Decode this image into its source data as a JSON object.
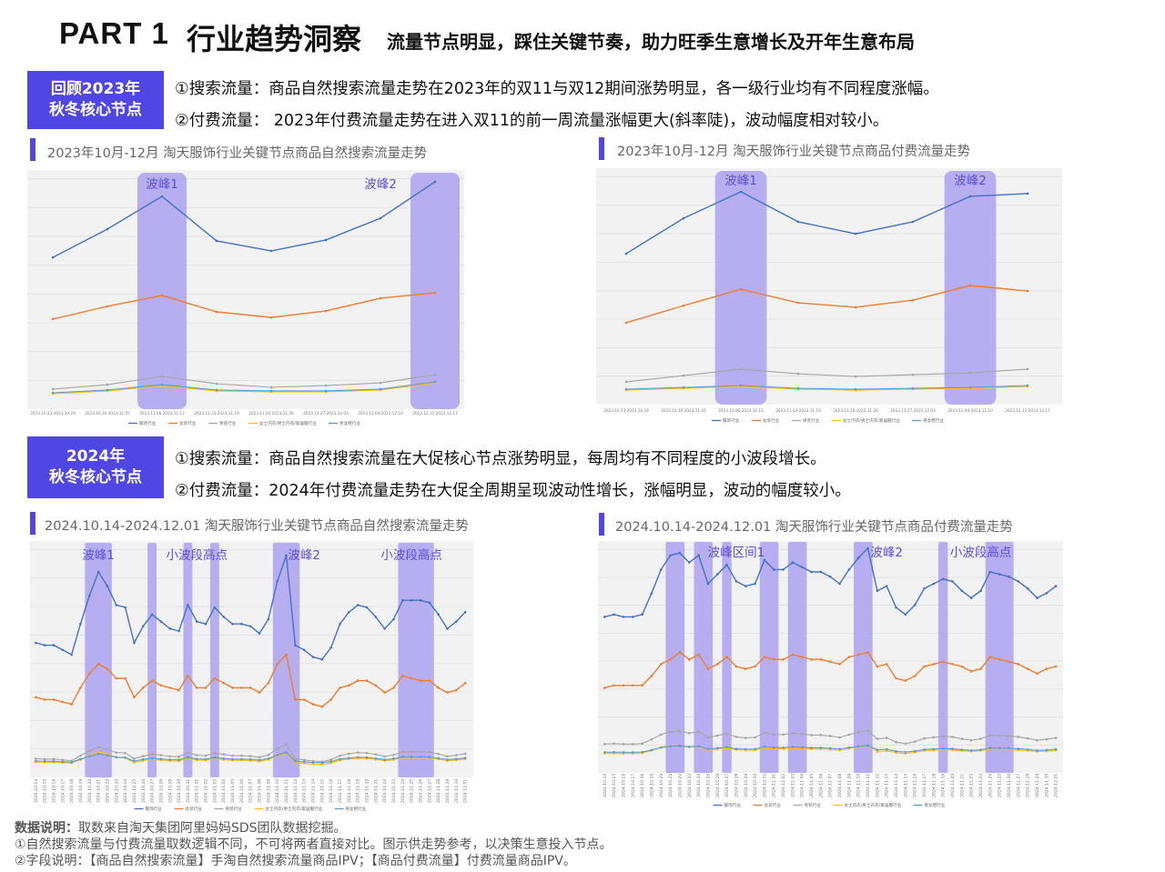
{
  "header": {
    "part": "PART 1",
    "title": "行业趋势洞察",
    "subtitle": "流量节点明显，踩住关键节奏，助力旺季生意增长及开年生意布局"
  },
  "section_2023": {
    "badge": [
      "回顾2023年",
      "秋冬核心节点"
    ],
    "points": [
      "①搜索流量：商品自然搜索流量走势在2023年的双11与双12期间涨势明显，各一级行业均有不同程度涨幅。",
      "②付费流量： 2023年付费流量走势在进入双11的前一周流量涨幅更大(斜率陡)，波动幅度相对较小。"
    ]
  },
  "section_2024": {
    "badge": [
      "2024年",
      "秋冬核心节点"
    ],
    "points": [
      "①搜索流量：商品自然搜索流量在大促核心节点涨势明显，每周均有不同程度的小波段增长。",
      "②付费流量：2024年付费流量走势在大促全周期呈现波动性增长，涨幅明显，波动的幅度较小。"
    ]
  },
  "legend": [
    {
      "name": "服饰行业",
      "color": "#4472c4"
    },
    {
      "name": "女装行业",
      "color": "#ed7d31"
    },
    {
      "name": "男装行业",
      "color": "#a5a5a5"
    },
    {
      "name": "女士内衣/男士内衣/家居服行业",
      "color": "#ffc000"
    },
    {
      "name": "男女鞋行业",
      "color": "#5b9bd5"
    }
  ],
  "highlight_color": "#b3aaf0",
  "annotation_color": "#5a4fd6",
  "chart_data": [
    {
      "type": "line",
      "title": "2023年10月-12月 淘天服饰行业关键节点商品自然搜索流量走势",
      "categories": [
        "2023.10.23-2023.10.29",
        "2023.10.30-2023.11.05",
        "2023.11.06-2023.11.12",
        "2023.11.13-2023.11.19",
        "2023.11.20-2023.11.26",
        "2023.11.27-2023.12.03",
        "2023.12.04-2023.12.10",
        "2023.12.11-2023.12.17"
      ],
      "series": [
        {
          "name": "服饰行业",
          "values": [
            63.5,
            75.7,
            89.8,
            70.6,
            66.3,
            71.0,
            80.4,
            96.1
          ]
        },
        {
          "name": "女装行业",
          "values": [
            36.9,
            42.4,
            47.1,
            40.0,
            37.6,
            40.4,
            45.9,
            48.2
          ]
        },
        {
          "name": "男装行业",
          "values": [
            6.7,
            8.6,
            12.2,
            9.0,
            7.5,
            8.2,
            9.4,
            12.9
          ]
        },
        {
          "name": "女士内衣/男士内衣/家居服行业",
          "values": [
            4.7,
            5.9,
            8.2,
            5.9,
            5.5,
            5.5,
            6.3,
            9.4
          ]
        },
        {
          "name": "男女鞋行业",
          "values": [
            5.1,
            6.3,
            8.6,
            6.3,
            5.9,
            5.9,
            6.7,
            9.8
          ]
        }
      ],
      "ylim": [
        0,
        100
      ],
      "grid": true,
      "legend_position": "bottom",
      "highlights": [
        {
          "from": "2023.11.06-2023.11.12",
          "to": "2023.11.06-2023.11.12"
        },
        {
          "from": "2023.12.11-2023.12.17",
          "to": "2023.12.11-2023.12.17"
        }
      ],
      "annotations": [
        {
          "text": "波峰1",
          "at": "2023.11.06-2023.11.12"
        },
        {
          "text": "波峰2",
          "at": "2023.12.04-2023.12.10"
        }
      ]
    },
    {
      "type": "line",
      "title": "2023年10月-12月 淘天服饰行业关键节点商品付费流量走势",
      "categories": [
        "2023.10.23-2023.10.29",
        "2023.10.30-2023.11.05",
        "2023.11.06-2023.11.12",
        "2023.11.13-2023.11.19",
        "2023.11.20-2023.11.26",
        "2023.11.27-2023.12.03",
        "2023.12.04-2023.12.10",
        "2023.12.11-2023.12.17"
      ],
      "series": [
        {
          "name": "服饰行业",
          "values": [
            63.4,
            78.7,
            90.2,
            77.2,
            72.0,
            77.2,
            88.2,
            89.4
          ]
        },
        {
          "name": "女装行业",
          "values": [
            33.5,
            40.9,
            48.0,
            42.1,
            40.2,
            43.3,
            49.6,
            47.2
          ]
        },
        {
          "name": "男装行业",
          "values": [
            7.9,
            10.6,
            13.4,
            11.4,
            10.2,
            11.0,
            11.8,
            13.4
          ]
        },
        {
          "name": "女士内衣/男士内衣/家居服行业",
          "values": [
            4.3,
            5.1,
            5.9,
            4.7,
            4.3,
            4.7,
            5.1,
            5.9
          ]
        },
        {
          "name": "男女鞋行业",
          "values": [
            4.7,
            5.5,
            6.3,
            5.1,
            4.7,
            5.1,
            5.5,
            6.3
          ]
        }
      ],
      "ylim": [
        0,
        100
      ],
      "grid": true,
      "legend_position": "bottom",
      "highlights": [
        {
          "from": "2023.11.06-2023.11.12",
          "to": "2023.11.06-2023.11.12"
        },
        {
          "from": "2023.12.04-2023.12.10",
          "to": "2023.12.04-2023.12.10"
        }
      ],
      "annotations": [
        {
          "text": "波峰1",
          "at": "2023.11.06-2023.11.12"
        },
        {
          "text": "波峰2",
          "at": "2023.12.04-2023.12.10"
        }
      ]
    },
    {
      "type": "line",
      "title": "2024.10.14-2024.12.01 淘天服饰行业关键节点商品自然搜索流量走势",
      "categories": [
        "2024.10.14",
        "2024.10.15",
        "2024.10.16",
        "2024.10.17",
        "2024.10.18",
        "2024.10.19",
        "2024.10.20",
        "2024.10.21",
        "2024.10.22",
        "2024.10.23",
        "2024.10.24",
        "2024.10.25",
        "2024.10.26",
        "2024.10.27",
        "2024.10.28",
        "2024.10.29",
        "2024.10.30",
        "2024.10.31",
        "2024.11.01",
        "2024.11.02",
        "2024.11.03",
        "2024.11.04",
        "2024.11.05",
        "2024.11.06",
        "2024.11.07",
        "2024.11.08",
        "2024.11.09",
        "2024.11.10",
        "2024.11.11",
        "2024.11.12",
        "2024.11.13",
        "2024.11.14",
        "2024.11.15",
        "2024.11.16",
        "2024.11.17",
        "2024.11.18",
        "2024.11.19",
        "2024.11.20",
        "2024.11.21",
        "2024.11.22",
        "2024.11.23",
        "2024.11.24",
        "2024.11.25",
        "2024.11.26",
        "2024.11.27",
        "2024.11.28",
        "2024.11.29",
        "2024.11.30",
        "2024.12.01"
      ],
      "series": [
        {
          "name": "服饰行业",
          "values": [
            55,
            54,
            54,
            52,
            50,
            63,
            75,
            85,
            79,
            71,
            70,
            55,
            62,
            67,
            64,
            61,
            60,
            71,
            64,
            63,
            70,
            66,
            63,
            63,
            62,
            59,
            65,
            81,
            92,
            54,
            52,
            49,
            48,
            53,
            63,
            68,
            71,
            70,
            66,
            61,
            65,
            73,
            73,
            73,
            72,
            67,
            61,
            64,
            68
          ]
        },
        {
          "name": "女装行业",
          "values": [
            32,
            31,
            31,
            30,
            29,
            36,
            42,
            46,
            44,
            40,
            40,
            32,
            36,
            39,
            37,
            36,
            35,
            41,
            36,
            36,
            40,
            38,
            36,
            36,
            36,
            34,
            38,
            46,
            50,
            31,
            31,
            29,
            28,
            31,
            36,
            37,
            39,
            39,
            37,
            34,
            36,
            41,
            40,
            39,
            39,
            36,
            34,
            35,
            38
          ]
        },
        {
          "name": "男装行业",
          "values": [
            6.0,
            5.8,
            5.8,
            5.5,
            5.1,
            7.3,
            9.3,
            10.9,
            9.9,
            8.6,
            8.4,
            6.0,
            7.1,
            8.0,
            7.5,
            7.0,
            6.8,
            8.6,
            7.5,
            7.3,
            8.4,
            7.8,
            7.3,
            7.3,
            7.1,
            6.6,
            7.6,
            10.3,
            12.1,
            5.8,
            5.5,
            5.0,
            4.8,
            5.6,
            7.3,
            8.1,
            8.6,
            8.4,
            7.8,
            7.0,
            7.6,
            8.9,
            8.9,
            8.9,
            8.8,
            8.0,
            7.0,
            7.5,
            8.1
          ]
        },
        {
          "name": "女士内衣/男士内衣/家居服行业",
          "values": [
            4.6,
            4.5,
            4.5,
            4.3,
            4.2,
            5.6,
            7.4,
            8.8,
            7.9,
            6.6,
            6.3,
            4.4,
            5.2,
            5.8,
            5.4,
            5.1,
            5.0,
            6.2,
            5.4,
            5.3,
            6.0,
            5.6,
            5.3,
            5.3,
            5.2,
            4.9,
            5.6,
            7.3,
            8.3,
            4.3,
            4.0,
            3.7,
            3.6,
            4.2,
            5.3,
            5.9,
            6.2,
            6.1,
            5.7,
            5.1,
            5.6,
            6.5,
            6.5,
            6.5,
            6.4,
            5.8,
            5.1,
            5.4,
            5.9
          ]
        },
        {
          "name": "男女鞋行业",
          "values": [
            5.0,
            4.9,
            4.9,
            4.7,
            4.5,
            5.8,
            7.0,
            8.0,
            7.4,
            6.6,
            6.5,
            5.0,
            5.7,
            6.2,
            5.9,
            5.6,
            5.5,
            6.6,
            5.9,
            5.8,
            6.5,
            6.1,
            5.8,
            5.8,
            5.7,
            5.4,
            6.0,
            7.6,
            8.7,
            4.9,
            4.7,
            4.4,
            4.3,
            4.8,
            5.8,
            6.3,
            6.6,
            6.5,
            6.1,
            5.6,
            6.0,
            6.8,
            6.8,
            6.8,
            6.7,
            6.2,
            5.6,
            5.9,
            6.3
          ]
        }
      ],
      "ylim": [
        0,
        100
      ],
      "grid": true,
      "legend_position": "bottom",
      "highlights": [
        {
          "from": "2024.10.20",
          "to": "2024.10.22"
        },
        {
          "from": "2024.10.27",
          "to": "2024.10.27"
        },
        {
          "from": "2024.10.31",
          "to": "2024.10.31"
        },
        {
          "from": "2024.11.03",
          "to": "2024.11.03"
        },
        {
          "from": "2024.11.10",
          "to": "2024.11.12"
        },
        {
          "from": "2024.11.24",
          "to": "2024.11.27"
        }
      ],
      "annotations": [
        {
          "text": "波峰1",
          "at": "2024.10.21"
        },
        {
          "text": "小波段高点",
          "at": "2024.11.01"
        },
        {
          "text": "波峰2",
          "at": "2024.11.13"
        },
        {
          "text": "小波段高点",
          "at": "2024.11.25"
        }
      ]
    },
    {
      "type": "line",
      "title": "2024.10.14-2024.12.01 淘天服饰行业关键节点商品付费流量走势",
      "categories": [
        "2024.10.14",
        "2024.10.15",
        "2024.10.16",
        "2024.10.17",
        "2024.10.18",
        "2024.10.19",
        "2024.10.20",
        "2024.10.21",
        "2024.10.22",
        "2024.10.23",
        "2024.10.24",
        "2024.10.25",
        "2024.10.26",
        "2024.10.27",
        "2024.10.28",
        "2024.10.29",
        "2024.10.30",
        "2024.10.31",
        "2024.11.01",
        "2024.11.02",
        "2024.11.03",
        "2024.11.04",
        "2024.11.05",
        "2024.11.06",
        "2024.11.07",
        "2024.11.08",
        "2024.11.09",
        "2024.11.10",
        "2024.11.11",
        "2024.11.12",
        "2024.11.13",
        "2024.11.14",
        "2024.11.15",
        "2024.11.16",
        "2024.11.17",
        "2024.11.18",
        "2024.11.19",
        "2024.11.20",
        "2024.11.21",
        "2024.11.22",
        "2024.11.23",
        "2024.11.24",
        "2024.11.25",
        "2024.11.26",
        "2024.11.27",
        "2024.11.28",
        "2024.11.29",
        "2024.11.30",
        "2024.12.01"
      ],
      "series": [
        {
          "name": "服饰行业",
          "values": [
            66,
            67,
            66,
            66,
            67,
            76,
            86,
            92,
            93,
            89,
            92,
            80,
            84,
            88,
            81,
            79,
            80,
            90,
            86,
            86,
            89,
            87,
            85,
            85,
            83,
            80,
            86,
            91,
            95,
            77,
            79,
            70,
            67,
            71,
            78,
            80,
            82,
            81,
            77,
            74,
            77,
            85,
            84,
            83,
            81,
            78,
            74,
            76,
            79
          ]
        },
        {
          "name": "女装行业",
          "values": [
            36,
            37,
            37,
            37,
            37,
            41,
            46,
            48,
            51,
            48,
            50,
            44,
            46,
            49,
            45,
            44,
            45,
            49,
            48,
            48,
            50,
            49,
            48,
            48,
            47,
            46,
            49,
            50,
            51,
            45,
            46,
            40,
            39,
            41,
            45,
            46,
            47,
            46,
            45,
            43,
            44,
            49,
            48,
            47,
            46,
            44,
            42,
            44,
            45
          ]
        },
        {
          "name": "男装行业",
          "values": [
            12.2,
            12.4,
            12.2,
            12.2,
            12.4,
            14.2,
            16.2,
            17.4,
            17.6,
            16.8,
            17.4,
            15.0,
            15.8,
            16.6,
            15.2,
            14.8,
            15.0,
            17.0,
            16.2,
            16.2,
            16.8,
            16.4,
            16.0,
            16.0,
            15.6,
            15.0,
            16.2,
            17.2,
            18.0,
            14.4,
            14.8,
            13.0,
            12.4,
            13.2,
            14.6,
            15.0,
            15.4,
            15.2,
            14.4,
            13.8,
            14.4,
            16.0,
            15.8,
            15.6,
            15.2,
            14.6,
            13.8,
            14.2,
            14.8
          ]
        },
        {
          "name": "女士内衣/男士内衣/家居服行业",
          "values": [
            8.2,
            8.3,
            8.2,
            8.2,
            8.4,
            9.5,
            10.9,
            11.5,
            11.3,
            11.0,
            11.1,
            9.6,
            10.0,
            10.4,
            9.8,
            9.6,
            9.7,
            10.6,
            10.2,
            10.2,
            10.5,
            10.3,
            10.1,
            10.1,
            9.9,
            9.6,
            10.3,
            11.0,
            11.6,
            9.0,
            9.3,
            8.6,
            8.2,
            8.7,
            9.4,
            9.6,
            9.9,
            9.7,
            9.4,
            9.1,
            9.4,
            10.1,
            10.0,
            9.9,
            9.7,
            9.4,
            9.0,
            9.2,
            9.5
          ]
        },
        {
          "name": "男女鞋行业",
          "values": [
            8.7,
            8.8,
            8.7,
            8.7,
            8.8,
            9.7,
            10.7,
            11.3,
            11.4,
            11.0,
            11.3,
            10.1,
            10.5,
            10.9,
            10.2,
            10.0,
            10.1,
            11.1,
            10.7,
            10.7,
            11.0,
            10.8,
            10.6,
            10.6,
            10.4,
            10.1,
            10.7,
            11.2,
            11.6,
            9.8,
            10.0,
            9.1,
            8.8,
            9.2,
            9.9,
            10.1,
            10.3,
            10.2,
            9.8,
            9.5,
            9.8,
            10.6,
            10.5,
            10.4,
            10.2,
            9.9,
            9.5,
            9.7,
            10.0
          ]
        }
      ],
      "ylim": [
        0,
        100
      ],
      "grid": true,
      "legend_position": "bottom",
      "highlights": [
        {
          "from": "2024.10.21",
          "to": "2024.10.22"
        },
        {
          "from": "2024.10.24",
          "to": "2024.10.25"
        },
        {
          "from": "2024.10.27",
          "to": "2024.10.27"
        },
        {
          "from": "2024.10.31",
          "to": "2024.11.01"
        },
        {
          "from": "2024.11.03",
          "to": "2024.11.04"
        },
        {
          "from": "2024.11.10",
          "to": "2024.11.11"
        },
        {
          "from": "2024.11.19",
          "to": "2024.11.19"
        },
        {
          "from": "2024.11.24",
          "to": "2024.11.26"
        }
      ],
      "annotations": [
        {
          "text": "波峰区间1",
          "at": "2024.10.28"
        },
        {
          "text": "波峰2",
          "at": "2024.11.13"
        },
        {
          "text": "小波段高点",
          "at": "2024.11.23"
        }
      ]
    }
  ],
  "notes": {
    "label": "数据说明：",
    "source": "取数来自淘天集团阿里妈妈SDS团队数据挖掘。",
    "lines": [
      "①自然搜索流量与付费流量取数逻辑不同，不可将两者直接对比。图示供走势参考，以决策生意投入节点。",
      "②字段说明：【商品自然搜索流量】手淘自然搜索流量商品IPV；【商品付费流量】付费流量商品IPV。"
    ]
  }
}
